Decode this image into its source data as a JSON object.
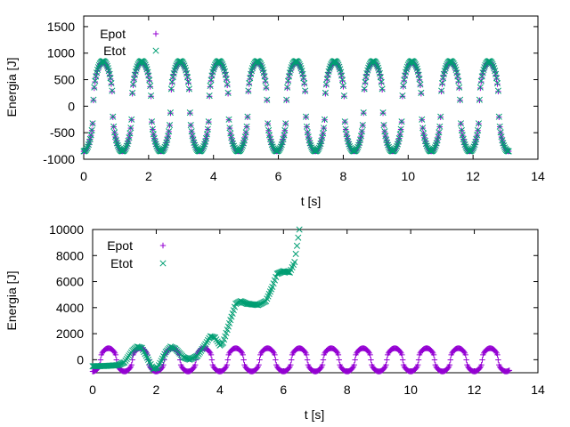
{
  "chart_data": [
    {
      "type": "scatter",
      "xlabel": "t [s]",
      "ylabel": "Energia [J]",
      "xlim": [
        0,
        14
      ],
      "ylim": [
        -1000,
        1700
      ],
      "xticks": [
        "0",
        "2",
        "4",
        "6",
        "8",
        "10",
        "12",
        "14"
      ],
      "yticks": [
        "-1000",
        "-500",
        "0",
        "500",
        "1000",
        "1500"
      ],
      "legend_position": "top-left",
      "series": [
        {
          "name": "Epot",
          "marker": "+",
          "color": "#9400D3",
          "model": {
            "t_max": 13.1,
            "period": 1.19,
            "peak": 830,
            "trough": -850
          }
        },
        {
          "name": "Etot",
          "marker": "x",
          "color": "#009E73",
          "model": {
            "t_max": 13.1,
            "period": 1.19,
            "peak": 850,
            "trough": -850
          }
        }
      ]
    },
    {
      "type": "scatter",
      "xlabel": "t [s]",
      "ylabel": "Energia [J]",
      "xlim": [
        0,
        14
      ],
      "ylim": [
        -1000,
        10000
      ],
      "xticks": [
        "0",
        "2",
        "4",
        "6",
        "8",
        "10",
        "12",
        "14"
      ],
      "yticks": [
        "0",
        "2000",
        "4000",
        "6000",
        "8000",
        "10000"
      ],
      "legend_position": "top-left",
      "series": [
        {
          "name": "Epot",
          "marker": "+",
          "color": "#9400D3",
          "model": {
            "t_max": 13.1,
            "period": 1.0,
            "peak": 880,
            "trough": -900
          }
        },
        {
          "name": "Etot",
          "marker": "x",
          "color": "#009E73",
          "points": [
            [
              0.0,
              -500
            ],
            [
              0.4,
              -480
            ],
            [
              0.8,
              -420
            ],
            [
              1.0,
              -200
            ],
            [
              1.25,
              700
            ],
            [
              1.4,
              1000
            ],
            [
              1.55,
              900
            ],
            [
              1.75,
              0
            ],
            [
              1.9,
              -700
            ],
            [
              2.05,
              -600
            ],
            [
              2.3,
              600
            ],
            [
              2.45,
              1000
            ],
            [
              2.6,
              850
            ],
            [
              2.85,
              200
            ],
            [
              3.05,
              0
            ],
            [
              3.3,
              300
            ],
            [
              3.55,
              1200
            ],
            [
              3.7,
              1800
            ],
            [
              3.85,
              1700
            ],
            [
              4.0,
              1100
            ],
            [
              4.1,
              1300
            ],
            [
              4.3,
              2800
            ],
            [
              4.5,
              4300
            ],
            [
              4.65,
              4500
            ],
            [
              4.85,
              4300
            ],
            [
              5.2,
              4200
            ],
            [
              5.45,
              4500
            ],
            [
              5.65,
              5600
            ],
            [
              5.8,
              6600
            ],
            [
              6.0,
              6800
            ],
            [
              6.2,
              6700
            ],
            [
              6.35,
              7500
            ],
            [
              6.5,
              10000
            ]
          ]
        }
      ]
    }
  ]
}
